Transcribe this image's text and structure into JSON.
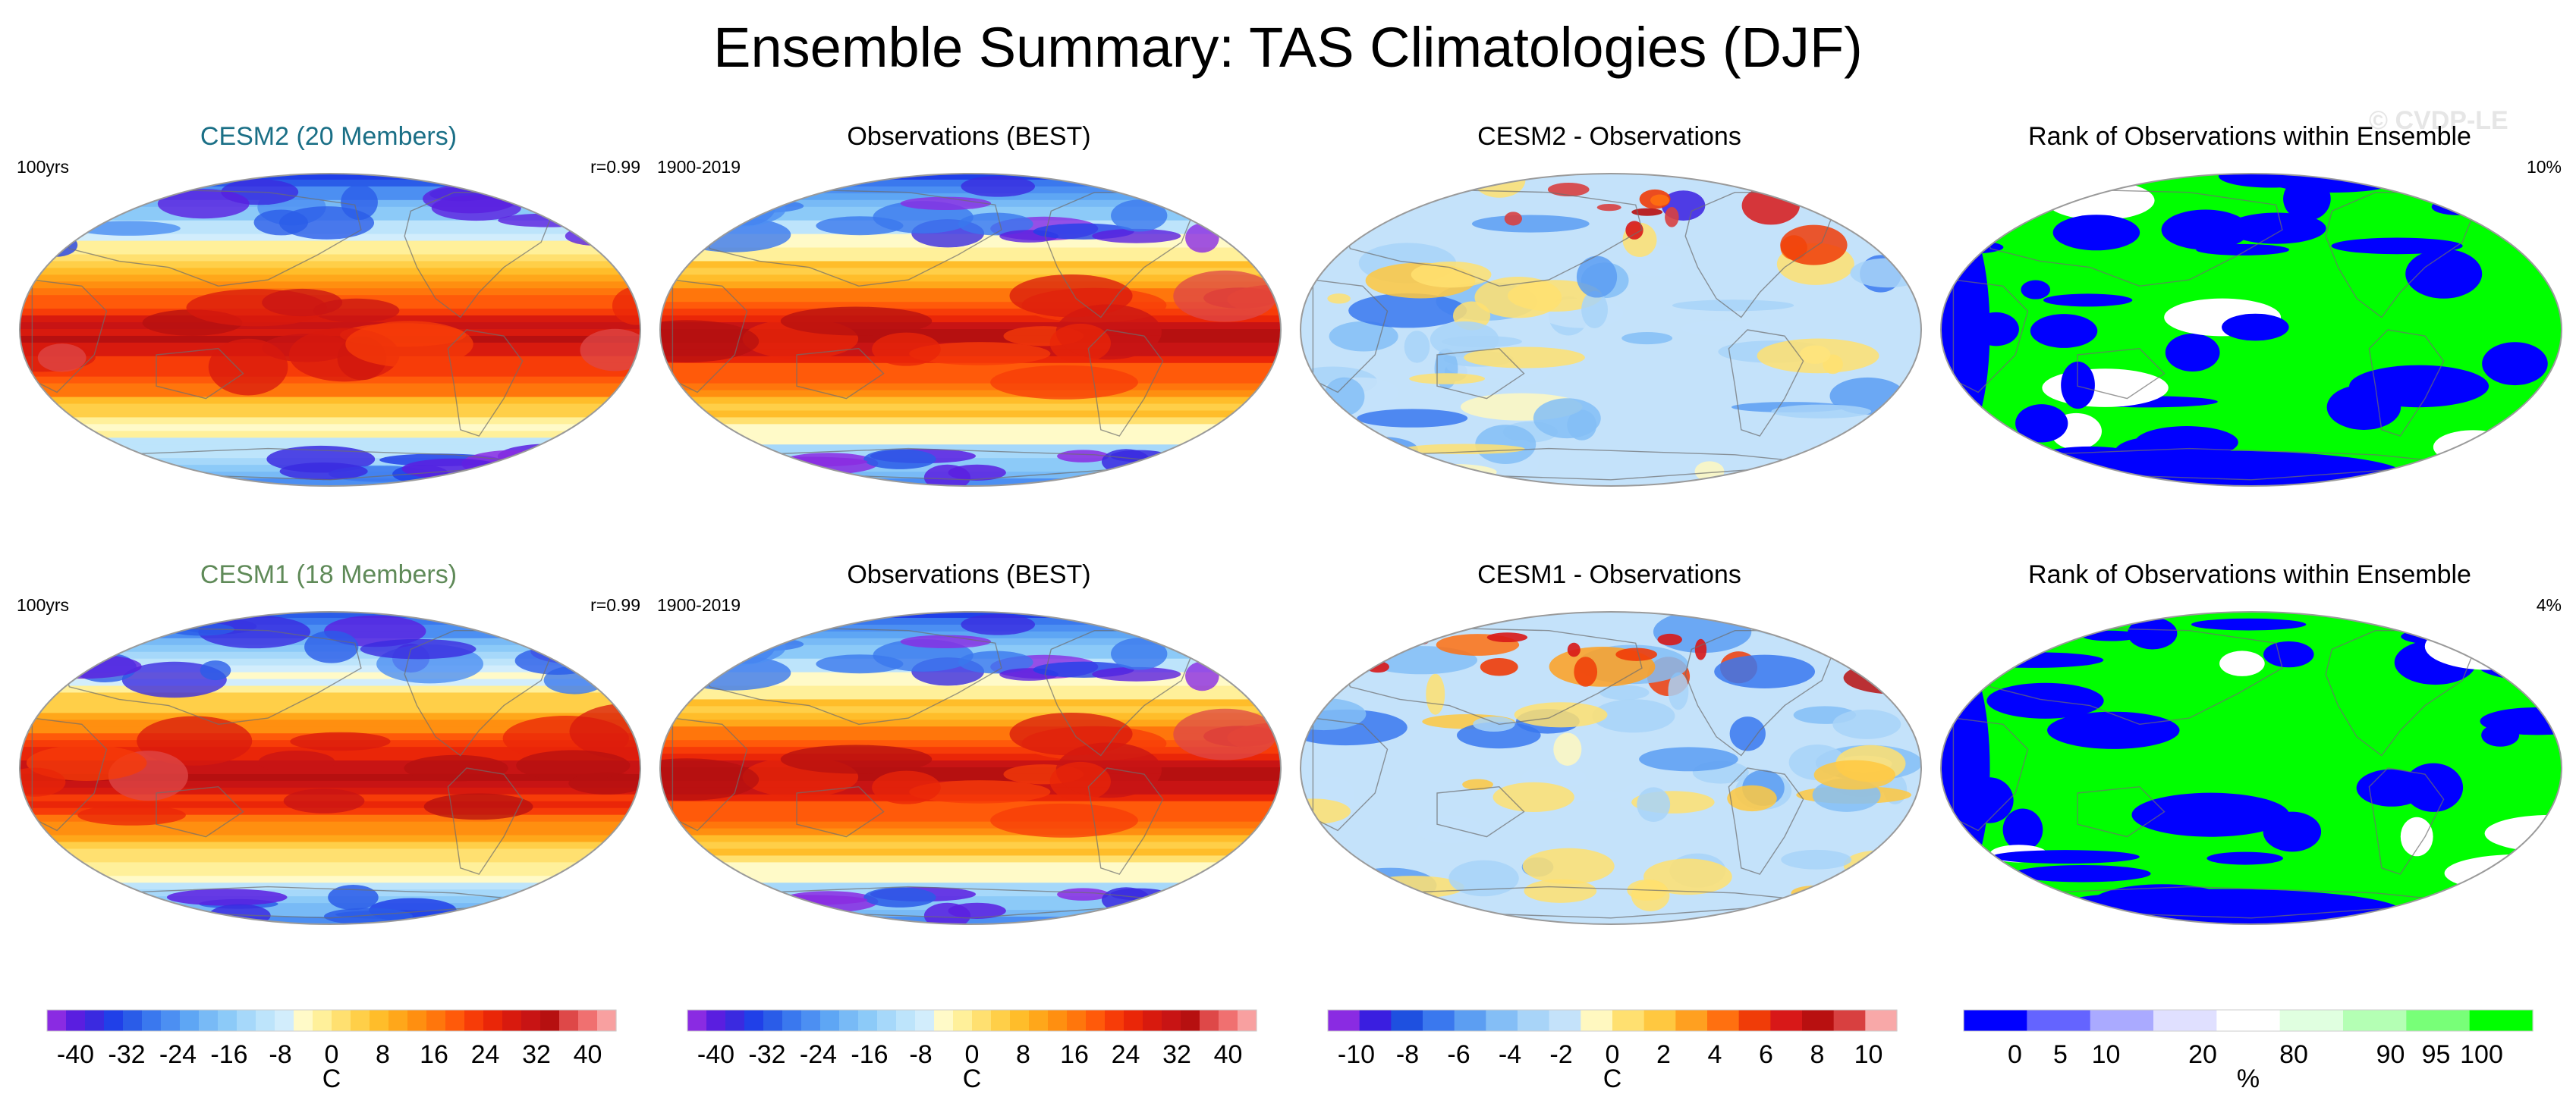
{
  "figure": {
    "title": "Ensemble Summary: TAS Climatologies (DJF)",
    "watermark": "© CVDP-LE"
  },
  "rows": [
    {
      "panels": [
        {
          "title": "CESM2 (20 Members)",
          "title_color": "#1a6f86",
          "left_label": "100yrs",
          "right_label": "r=0.99",
          "map_type": "climatology",
          "seed": 11
        },
        {
          "title": "Observations (BEST)",
          "title_color": "#000000",
          "left_label": "1900-2019",
          "right_label": "",
          "map_type": "climatology",
          "seed": 23
        },
        {
          "title": "CESM2 - Observations",
          "title_color": "#000000",
          "left_label": "",
          "right_label": "",
          "map_type": "difference",
          "seed": 37
        },
        {
          "title": "Rank of Observations within Ensemble",
          "title_color": "#000000",
          "left_label": "",
          "right_label": "10%",
          "map_type": "rank",
          "seed": 53
        }
      ]
    },
    {
      "panels": [
        {
          "title": "CESM1 (18 Members)",
          "title_color": "#5f8a58",
          "left_label": "100yrs",
          "right_label": "r=0.99",
          "map_type": "climatology",
          "seed": 71
        },
        {
          "title": "Observations (BEST)",
          "title_color": "#000000",
          "left_label": "1900-2019",
          "right_label": "",
          "map_type": "climatology",
          "seed": 23
        },
        {
          "title": "CESM1 - Observations",
          "title_color": "#000000",
          "left_label": "",
          "right_label": "",
          "map_type": "difference",
          "seed": 89
        },
        {
          "title": "Rank of Observations within Ensemble",
          "title_color": "#000000",
          "left_label": "",
          "right_label": "4%",
          "map_type": "rank",
          "seed": 97
        }
      ]
    }
  ],
  "colorbars": [
    {
      "name": "climatology-colorbar-1",
      "unit": "C",
      "tick_labels": [
        "-40",
        "-32",
        "-24",
        "-16",
        "-8",
        "0",
        "8",
        "16",
        "24",
        "32",
        "40"
      ],
      "colors": [
        "#8a2be2",
        "#5a1ee0",
        "#3a2ae0",
        "#2040e8",
        "#2a5ce8",
        "#3a78ee",
        "#4c8ff2",
        "#5ea6f4",
        "#78baf6",
        "#8ccaf8",
        "#a6d8fa",
        "#bde4fb",
        "#d2edfc",
        "#fffac8",
        "#fff09a",
        "#ffe070",
        "#ffcf48",
        "#ffbd2a",
        "#ffa71a",
        "#ff8f10",
        "#ff760c",
        "#ff5a0a",
        "#f73c08",
        "#ea2608",
        "#d81a0e",
        "#c81414",
        "#b61010",
        "#de4848",
        "#f07070",
        "#f8a0a0"
      ]
    },
    {
      "name": "climatology-colorbar-2",
      "unit": "C",
      "tick_labels": [
        "-40",
        "-32",
        "-24",
        "-16",
        "-8",
        "0",
        "8",
        "16",
        "24",
        "32",
        "40"
      ],
      "colors": [
        "#8a2be2",
        "#5a1ee0",
        "#3a2ae0",
        "#2040e8",
        "#2a5ce8",
        "#3a78ee",
        "#4c8ff2",
        "#5ea6f4",
        "#78baf6",
        "#8ccaf8",
        "#a6d8fa",
        "#bde4fb",
        "#d2edfc",
        "#fffac8",
        "#fff09a",
        "#ffe070",
        "#ffcf48",
        "#ffbd2a",
        "#ffa71a",
        "#ff8f10",
        "#ff760c",
        "#ff5a0a",
        "#f73c08",
        "#ea2608",
        "#d81a0e",
        "#c81414",
        "#b61010",
        "#de4848",
        "#f07070",
        "#f8a0a0"
      ]
    },
    {
      "name": "difference-colorbar",
      "unit": "C",
      "tick_labels": [
        "-10",
        "-8",
        "-6",
        "-4",
        "-2",
        "0",
        "2",
        "4",
        "6",
        "8",
        "10"
      ],
      "colors": [
        "#8a2be2",
        "#3a1ee0",
        "#1e50e0",
        "#3a78ee",
        "#5c9ef2",
        "#84bef6",
        "#a8d4f8",
        "#c4e2fa",
        "#fff8c0",
        "#ffe070",
        "#ffc840",
        "#ffa020",
        "#ff7010",
        "#f03c08",
        "#d81818",
        "#b81010",
        "#d84040",
        "#f8a8a8"
      ]
    },
    {
      "name": "rank-colorbar",
      "unit": "%",
      "tick_labels": [
        "0",
        "5",
        "10",
        "20",
        "80",
        "90",
        "95",
        "100"
      ],
      "colors": [
        "#0000ff",
        "#6464ff",
        "#aaaaff",
        "#e0e0ff",
        "#ffffff",
        "#e0ffe0",
        "#b4ffb4",
        "#78ff78",
        "#00ff00"
      ]
    }
  ],
  "palettes": {
    "land_outline": "#6e6e6e",
    "map_border": "#9a9a9a",
    "rank_blue": "#0000ff",
    "rank_green": "#00ff00",
    "rank_white": "#ffffff"
  }
}
